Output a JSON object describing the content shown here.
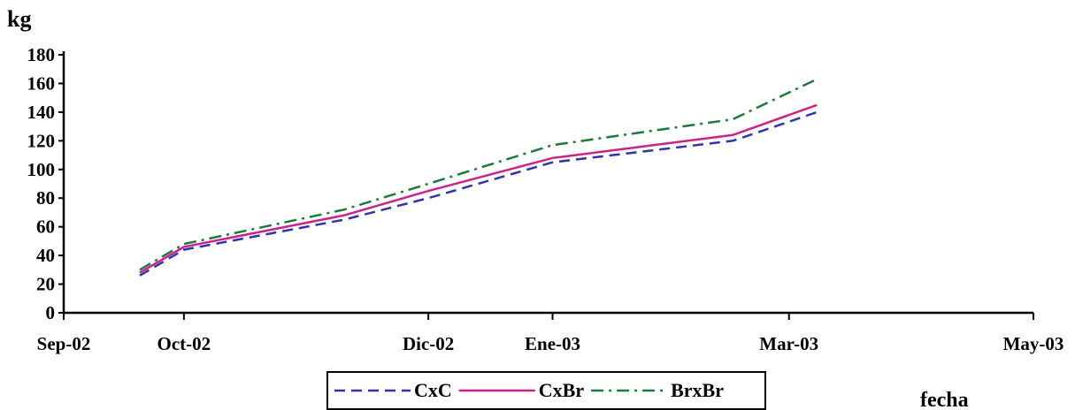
{
  "chart_data": {
    "type": "line",
    "ylabel": "kg",
    "xlabel": "fecha",
    "ylim": [
      0,
      180
    ],
    "y_ticks": [
      0,
      20,
      40,
      60,
      80,
      100,
      120,
      140,
      160,
      180
    ],
    "x_ticks": [
      "Sep-02",
      "Oct-02",
      "Dic-02",
      "Ene-03",
      "Mar-03",
      "May-03"
    ],
    "x_tick_dates": [
      "2002-09-01",
      "2002-10-01",
      "2002-12-01",
      "2003-01-01",
      "2003-03-01",
      "2003-05-01"
    ],
    "x": [
      "2002-09-20",
      "2002-10-01",
      "2002-11-10",
      "2002-12-01",
      "2003-01-01",
      "2003-02-15",
      "2003-03-08"
    ],
    "series": [
      {
        "name": "CxC",
        "values": [
          26,
          44,
          65,
          80,
          105,
          120,
          140
        ],
        "color": "#3333aa",
        "dash": "dashed"
      },
      {
        "name": "CxBr",
        "values": [
          28,
          46,
          68,
          85,
          108,
          124,
          145
        ],
        "color": "#cc2288",
        "dash": "solid"
      },
      {
        "name": "BrxBr",
        "values": [
          30,
          48,
          72,
          90,
          117,
          135,
          163
        ],
        "color": "#1f7a3a",
        "dash": "dash-dot"
      }
    ],
    "legend_position": "bottom-center",
    "grid": false
  }
}
